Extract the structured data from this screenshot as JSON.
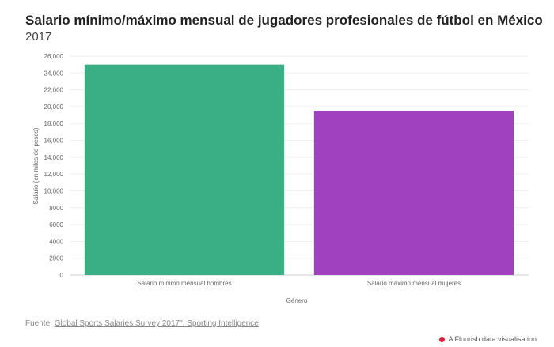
{
  "header": {
    "title": "Salario mínimo/máximo mensual de jugadores profesionales de fútbol en México",
    "subtitle": "2017"
  },
  "chart_data": {
    "type": "bar",
    "categories": [
      "Salario mínimo mensual hombres",
      "Salario máximo mensual mujeres"
    ],
    "values": [
      25000,
      19500
    ],
    "colors": [
      "#3aaf85",
      "#a041c0"
    ],
    "xlabel": "Género",
    "ylabel": "Salario (en miles de pesos)",
    "ylim": [
      0,
      26000
    ],
    "yticks": [
      "0",
      "2000",
      "4000",
      "6000",
      "8000",
      "10,000",
      "12,000",
      "14,000",
      "16,000",
      "18,000",
      "20,000",
      "22,000",
      "24,000",
      "26,000"
    ],
    "grid": true
  },
  "footer": {
    "source_prefix": "Fuente: ",
    "source_link": "Global Sports Salaries Survey 2017\", Sporting Intelligence",
    "credit": "A Flourish data visualisation",
    "credit_icon": "flourish-logo-icon"
  }
}
